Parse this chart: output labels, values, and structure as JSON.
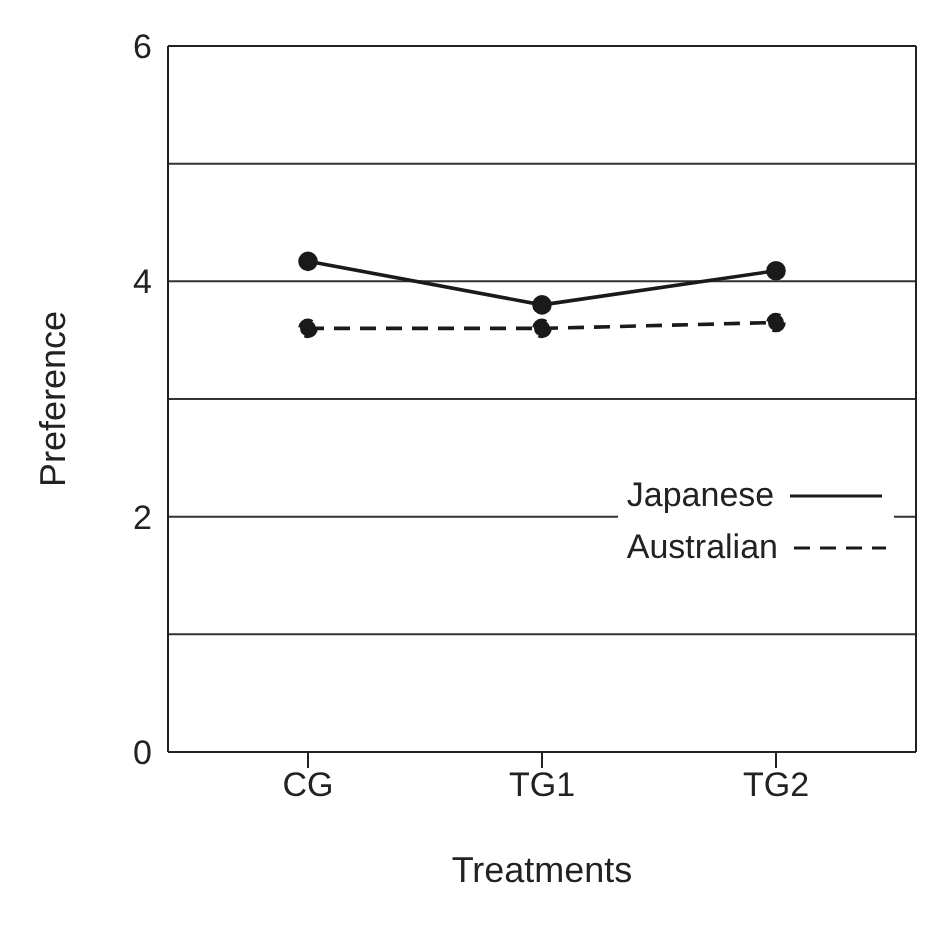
{
  "chart_data": {
    "type": "line",
    "xlabel": "Treatments",
    "ylabel": "Preference",
    "categories": [
      "CG",
      "TG1",
      "TG2"
    ],
    "series": [
      {
        "name": "Japanese",
        "color": "#1a1a1a",
        "values": [
          4.17,
          3.8,
          4.09
        ],
        "line_style": "solid"
      },
      {
        "name": "Australian",
        "color": "#1a1a1a",
        "values": [
          3.6,
          3.6,
          3.65
        ],
        "line_style": "dashed"
      }
    ],
    "ylim": [
      0,
      6
    ],
    "yticks": [
      0,
      {
        "value": 1,
        "label": null
      },
      2,
      {
        "value": 3,
        "label": null
      },
      4,
      {
        "value": 5,
        "label": null
      },
      6
    ],
    "grid": "y",
    "legend": "right",
    "marker": "circle"
  }
}
